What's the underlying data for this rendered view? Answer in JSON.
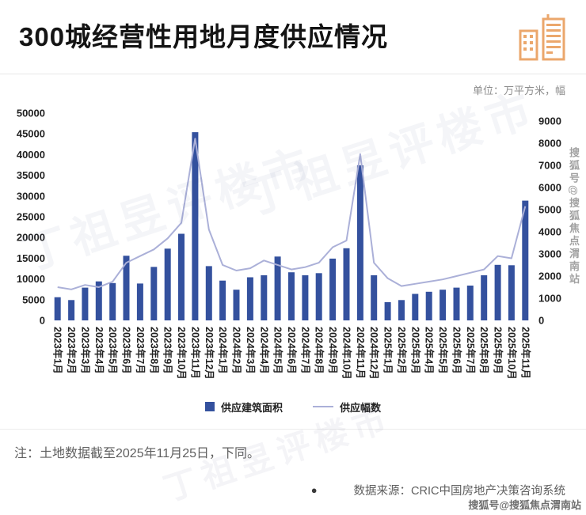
{
  "header": {
    "title": "300城经营性用地月度供应情况"
  },
  "chart": {
    "unit_label": "单位：万平方米，幅",
    "legend": {
      "bar": "供应建筑面积",
      "line": "供应幅数"
    }
  },
  "chart_data": {
    "type": "bar",
    "title": "300城经营性用地月度供应情况",
    "categories": [
      "2023年1月",
      "2023年2月",
      "2023年3月",
      "2023年4月",
      "2023年5月",
      "2023年6月",
      "2023年7月",
      "2023年8月",
      "2023年9月",
      "2023年10月",
      "2023年11月",
      "2023年12月",
      "2024年1月",
      "2024年2月",
      "2024年3月",
      "2024年4月",
      "2024年5月",
      "2024年6月",
      "2024年7月",
      "2024年8月",
      "2024年9月",
      "2024年10月",
      "2024年11月",
      "2024年12月",
      "2025年1月",
      "2025年2月",
      "2025年3月",
      "2025年4月",
      "2025年5月",
      "2025年6月",
      "2025年7月",
      "2025年8月",
      "2025年9月",
      "2025年10月",
      "2025年11月"
    ],
    "series": [
      {
        "name": "供应建筑面积",
        "chart": "bar",
        "axis": "left",
        "values": [
          5600,
          4900,
          7900,
          9400,
          9000,
          15600,
          8900,
          12900,
          17300,
          20900,
          45400,
          13100,
          9600,
          7400,
          10400,
          10900,
          15400,
          11600,
          10900,
          11400,
          14900,
          17400,
          37400,
          10900,
          4400,
          4900,
          6400,
          6900,
          7400,
          7900,
          8400,
          10900,
          13400,
          13300,
          28900
        ]
      },
      {
        "name": "供应幅数",
        "chart": "line",
        "axis": "right",
        "values": [
          1500,
          1400,
          1600,
          1500,
          1750,
          2600,
          2900,
          3200,
          3700,
          4400,
          8200,
          4100,
          2500,
          2250,
          2350,
          2700,
          2500,
          2300,
          2400,
          2600,
          3300,
          3600,
          7500,
          2600,
          1900,
          1550,
          1650,
          1750,
          1850,
          2000,
          2150,
          2300,
          2900,
          2800,
          5150
        ]
      }
    ],
    "left_axis": {
      "min": 0,
      "max": 50000,
      "step": 5000,
      "label": "万平方米"
    },
    "right_axis": {
      "min": 0,
      "max": 9000,
      "step": 1000,
      "label": "幅"
    },
    "grid": "off",
    "legend_position": "bottom",
    "colors": {
      "bar": "#34519e",
      "line": "#abb0d8"
    }
  },
  "footer": {
    "note": "注：土地数据截至2025年11月25日，下同。",
    "source_bullet": "●",
    "source": "数据来源：CRIC中国房地产决策咨询系统"
  },
  "watermarks": {
    "diagonal": "丁祖昱评楼市",
    "sohu_vertical": "搜狐号@搜狐焦点渭南站",
    "sohu_corner": "搜狐号@搜狐焦点渭南站"
  }
}
